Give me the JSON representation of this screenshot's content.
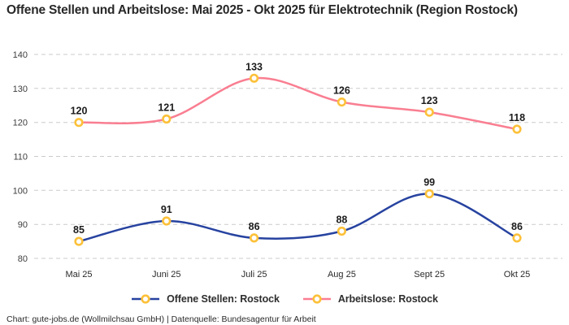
{
  "title": "Offene Stellen und Arbeitslose: Mai 2025 - Okt 2025 für Elektrotechnik (Region Rostock)",
  "footer": "Chart: gute-jobs.de (Wollmilchsau GmbH) | Datenquelle: Bundesagentur für Arbeit",
  "colors": {
    "open_positions_line": "#2743a0",
    "unemployed_line": "#f97e91",
    "marker_ring": "#fcc13a",
    "marker_fill": "#ffffff",
    "gridline": "#cbcbcb",
    "title_text": "#282828",
    "axis_text": "#3d3d3d",
    "data_label_text": "#1b1b1b"
  },
  "chart_data": {
    "type": "line",
    "title": "Offene Stellen und Arbeitslose: Mai 2025 - Okt 2025 für Elektrotechnik (Region Rostock)",
    "categories": [
      "Mai 25",
      "Juni 25",
      "Juli 25",
      "Aug 25",
      "Sept 25",
      "Okt 25"
    ],
    "series": [
      {
        "name": "Offene Stellen: Rostock",
        "color": "#2743a0",
        "values": [
          85,
          91,
          86,
          88,
          99,
          86
        ]
      },
      {
        "name": "Arbeitslose: Rostock",
        "color": "#f97e91",
        "values": [
          120,
          121,
          133,
          126,
          123,
          118
        ]
      }
    ],
    "ylim": [
      80,
      140
    ],
    "yticks": [
      80,
      90,
      100,
      110,
      120,
      130,
      140
    ],
    "xlabel": "",
    "ylabel": "",
    "grid": "horizontal-dashed",
    "legend_position": "bottom",
    "marker": "circle-ring-yellow",
    "smooth": true,
    "data_labels": true
  }
}
